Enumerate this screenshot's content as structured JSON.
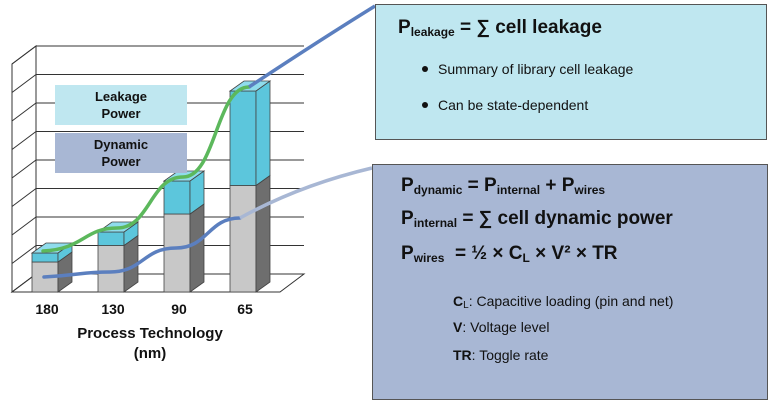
{
  "chart_data": {
    "type": "bar",
    "categories": [
      "180",
      "130",
      "90",
      "65"
    ],
    "series": [
      {
        "name": "Dynamic Power",
        "values": [
          1.0,
          1.55,
          2.6,
          3.55
        ]
      },
      {
        "name": "Leakage Power",
        "values": [
          0.3,
          0.45,
          1.1,
          3.15
        ]
      }
    ],
    "xlabel": [
      "Process Technology",
      "(nm)"
    ],
    "ylim": [
      0,
      7.6
    ],
    "grid": true,
    "legend": {
      "position": "top-left",
      "entries": [
        {
          "label": [
            "Leakage",
            "Power"
          ],
          "color": "#bfe7f0"
        },
        {
          "label": [
            "Dynamic",
            "Power"
          ],
          "color": "#a8b7d4"
        }
      ]
    },
    "colors": {
      "dynamic_face": "#c8c8c8",
      "dynamic_side": "#6e6e6e",
      "leakage_face": "#5cc6dc",
      "leakage_top": "#8fdcec",
      "trend_leakage": "#5cb85c",
      "trend_dynamic": "#5b7fbf"
    }
  },
  "leakage_box": {
    "eq_P": "P",
    "eq_sub": "leakage",
    "eq_rest": "= ∑ cell leakage",
    "bullets": [
      "Summary of library cell leakage",
      "Can be state-dependent"
    ]
  },
  "dynamic_box": {
    "eq1": {
      "P": "P",
      "sub": "dynamic",
      "eq": "= P",
      "sub2": "internal",
      "plus": "+ P",
      "sub3": "wires"
    },
    "eq2": {
      "P": "P",
      "sub": "internal",
      "rest": "= ∑ cell dynamic power"
    },
    "eq3": {
      "P": "P",
      "sub": "wires",
      "rest1": "= ½ × C",
      "sub2": "L",
      "rest2": "× V² × TR"
    },
    "defs": [
      {
        "sym": "C",
        "sub": "L",
        "text": ": Capacitive loading (pin and net)"
      },
      {
        "sym": "V",
        "sub": "",
        "text": ": Voltage level"
      },
      {
        "sym": "TR",
        "sub": "",
        "text": ": Toggle rate"
      }
    ]
  }
}
